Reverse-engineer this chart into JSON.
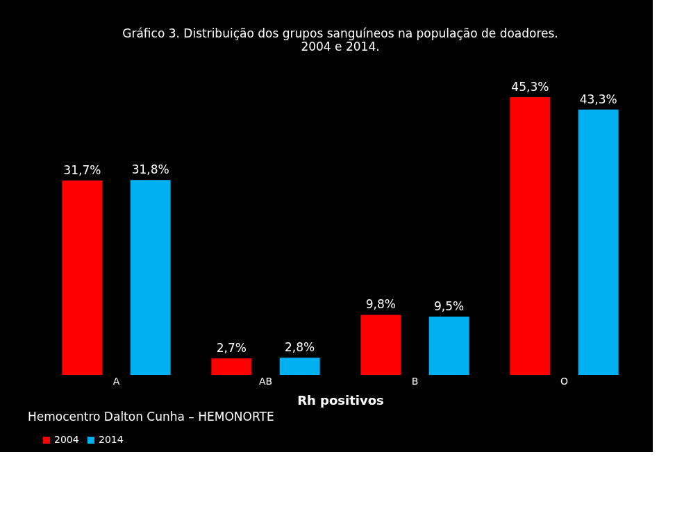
{
  "chart_data": {
    "type": "bar",
    "title": [
      "Gráfico 3. Distribuição dos grupos sanguíneos na população de doadores.",
      "2004 e 2014."
    ],
    "xlabel": "Rh positivos",
    "categories": [
      "A",
      "AB",
      "B",
      "O"
    ],
    "series": [
      {
        "name": "2004",
        "color": "#ff0000",
        "values": [
          31.7,
          2.7,
          9.8,
          45.3
        ],
        "value_labels": [
          "31,7%",
          "2,7%",
          "9,8%",
          "45,3%"
        ]
      },
      {
        "name": "2014",
        "color": "#00b0f0",
        "values": [
          31.8,
          2.8,
          9.5,
          43.3
        ],
        "value_labels": [
          "31,8%",
          "2,8%",
          "9,5%",
          "43,3%"
        ]
      }
    ],
    "legend": "bottom",
    "grid": false,
    "annotations": [
      "Hemocentro Dalton Cunha – HEMONORTE"
    ]
  }
}
